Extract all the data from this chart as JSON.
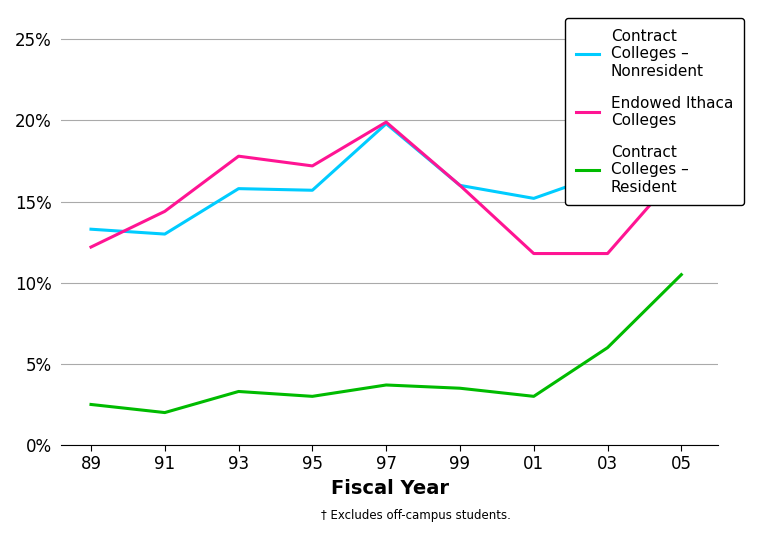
{
  "x_numeric": [
    1989,
    1991,
    1993,
    1995,
    1997,
    1999,
    2001,
    2003,
    2005
  ],
  "y_nonresident": [
    0.133,
    0.13,
    0.158,
    0.157,
    0.198,
    0.16,
    0.152,
    0.168,
    0.225
  ],
  "y_endowed": [
    0.122,
    0.144,
    0.178,
    0.172,
    0.199,
    0.16,
    0.118,
    0.118,
    0.17
  ],
  "y_resident": [
    0.025,
    0.02,
    0.033,
    0.03,
    0.037,
    0.035,
    0.03,
    0.06,
    0.105
  ],
  "color_nonresident": "#00CCFF",
  "color_endowed": "#FF1493",
  "color_resident": "#00BB00",
  "background_color": "#FFFFFF",
  "xlabel": "Fiscal Year",
  "footnote": "† Excludes off-campus students.",
  "legend_label_1": "Contract\nColleges –\nNonresident",
  "legend_label_2": "Endowed Ithaca\nColleges",
  "legend_label_3": "Contract\nColleges –\nResident",
  "yticks": [
    0.0,
    0.05,
    0.1,
    0.15,
    0.2,
    0.25
  ],
  "ytick_labels": [
    "0%",
    "5%",
    "10%",
    "15%",
    "20%",
    "25%"
  ],
  "xtick_labels": [
    "89",
    "91",
    "93",
    "95",
    "97",
    "99",
    "01",
    "03",
    "05"
  ],
  "ylim": [
    0.0,
    0.265
  ],
  "xlim_min": 1988.2,
  "xlim_max": 2006.0
}
